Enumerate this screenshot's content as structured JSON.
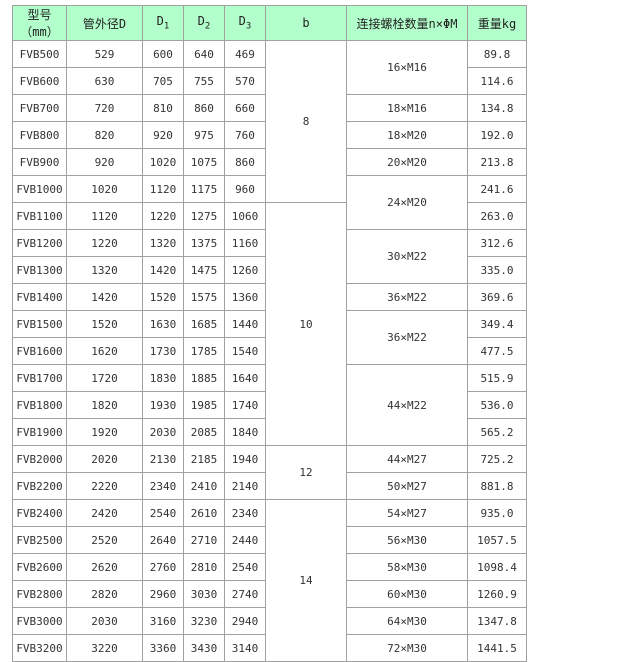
{
  "colors": {
    "header_bg": "#b3ffcc",
    "border": "#a0a0a0"
  },
  "headers": {
    "model": "型号（mm）",
    "od": "管外径D",
    "d1": "D",
    "d1_sub": "1",
    "d2": "D",
    "d2_sub": "2",
    "d3": "D",
    "d3_sub": "3",
    "b": "b",
    "bolts": "连接螺栓数量n×ΦM",
    "weight": "重量kg"
  },
  "rows": [
    {
      "model": "FVB500",
      "od": "529",
      "d1": "600",
      "d2": "640",
      "d3": "469",
      "weight": "89.8"
    },
    {
      "model": "FVB600",
      "od": "630",
      "d1": "705",
      "d2": "755",
      "d3": "570",
      "weight": "114.6"
    },
    {
      "model": "FVB700",
      "od": "720",
      "d1": "810",
      "d2": "860",
      "d3": "660",
      "weight": "134.8"
    },
    {
      "model": "FVB800",
      "od": "820",
      "d1": "920",
      "d2": "975",
      "d3": "760",
      "weight": "192.0"
    },
    {
      "model": "FVB900",
      "od": "920",
      "d1": "1020",
      "d2": "1075",
      "d3": "860",
      "weight": "213.8"
    },
    {
      "model": "FVB1000",
      "od": "1020",
      "d1": "1120",
      "d2": "1175",
      "d3": "960",
      "weight": "241.6"
    },
    {
      "model": "FVB1100",
      "od": "1120",
      "d1": "1220",
      "d2": "1275",
      "d3": "1060",
      "weight": "263.0"
    },
    {
      "model": "FVB1200",
      "od": "1220",
      "d1": "1320",
      "d2": "1375",
      "d3": "1160",
      "weight": "312.6"
    },
    {
      "model": "FVB1300",
      "od": "1320",
      "d1": "1420",
      "d2": "1475",
      "d3": "1260",
      "weight": "335.0"
    },
    {
      "model": "FVB1400",
      "od": "1420",
      "d1": "1520",
      "d2": "1575",
      "d3": "1360",
      "weight": "369.6"
    },
    {
      "model": "FVB1500",
      "od": "1520",
      "d1": "1630",
      "d2": "1685",
      "d3": "1440",
      "weight": "349.4"
    },
    {
      "model": "FVB1600",
      "od": "1620",
      "d1": "1730",
      "d2": "1785",
      "d3": "1540",
      "weight": "477.5"
    },
    {
      "model": "FVB1700",
      "od": "1720",
      "d1": "1830",
      "d2": "1885",
      "d3": "1640",
      "weight": "515.9"
    },
    {
      "model": "FVB1800",
      "od": "1820",
      "d1": "1930",
      "d2": "1985",
      "d3": "1740",
      "weight": "536.0"
    },
    {
      "model": "FVB1900",
      "od": "1920",
      "d1": "2030",
      "d2": "2085",
      "d3": "1840",
      "weight": "565.2"
    },
    {
      "model": "FVB2000",
      "od": "2020",
      "d1": "2130",
      "d2": "2185",
      "d3": "1940",
      "weight": "725.2"
    },
    {
      "model": "FVB2200",
      "od": "2220",
      "d1": "2340",
      "d2": "2410",
      "d3": "2140",
      "weight": "881.8"
    },
    {
      "model": "FVB2400",
      "od": "2420",
      "d1": "2540",
      "d2": "2610",
      "d3": "2340",
      "weight": "935.0"
    },
    {
      "model": "FVB2500",
      "od": "2520",
      "d1": "2640",
      "d2": "2710",
      "d3": "2440",
      "weight": "1057.5"
    },
    {
      "model": "FVB2600",
      "od": "2620",
      "d1": "2760",
      "d2": "2810",
      "d3": "2540",
      "weight": "1098.4"
    },
    {
      "model": "FVB2800",
      "od": "2820",
      "d1": "2960",
      "d2": "3030",
      "d3": "2740",
      "weight": "1260.9"
    },
    {
      "model": "FVB3000",
      "od": "2030",
      "d1": "3160",
      "d2": "3230",
      "d3": "2940",
      "weight": "1347.8"
    },
    {
      "model": "FVB3200",
      "od": "3220",
      "d1": "3360",
      "d2": "3430",
      "d3": "3140",
      "weight": "1441.5"
    }
  ],
  "b_groups": [
    {
      "value": "8",
      "rows": 6
    },
    {
      "value": "10",
      "rows": 9
    },
    {
      "value": "12",
      "rows": 2
    },
    {
      "value": "14",
      "rows": 6
    }
  ],
  "bolt_groups": [
    {
      "value": "16×M16",
      "rows": 2
    },
    {
      "value": "18×M16",
      "rows": 1
    },
    {
      "value": "18×M20",
      "rows": 1
    },
    {
      "value": "20×M20",
      "rows": 1
    },
    {
      "value": "24×M20",
      "rows": 2
    },
    {
      "value": "30×M22",
      "rows": 2
    },
    {
      "value": "36×M22",
      "rows": 1
    },
    {
      "value": "36×M22",
      "rows": 2
    },
    {
      "value": "44×M22",
      "rows": 3
    },
    {
      "value": "44×M27",
      "rows": 1
    },
    {
      "value": "50×M27",
      "rows": 1
    },
    {
      "value": "54×M27",
      "rows": 1
    },
    {
      "value": "56×M30",
      "rows": 1
    },
    {
      "value": "58×M30",
      "rows": 1
    },
    {
      "value": "60×M30",
      "rows": 1
    },
    {
      "value": "64×M30",
      "rows": 1
    },
    {
      "value": "72×M30",
      "rows": 1
    }
  ]
}
